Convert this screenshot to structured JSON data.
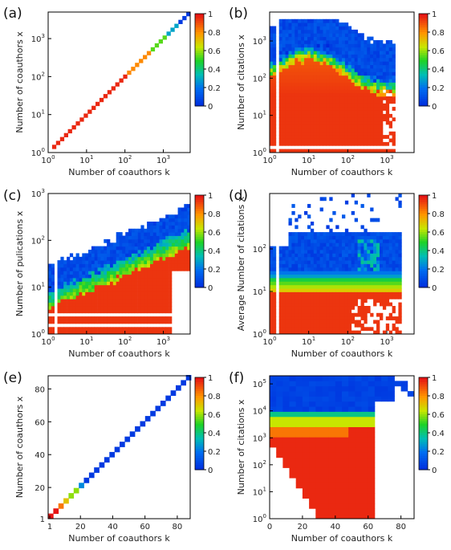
{
  "chart_data": [
    {
      "panel_label": "(a)",
      "type": "heatmap",
      "xlabel": "Number of coauthors k",
      "ylabel": "Number of coauthors x",
      "xscale": "log",
      "yscale": "log",
      "xlim": [
        1,
        5000
      ],
      "ylim": [
        1,
        5000
      ],
      "x_ticks": [
        {
          "v": 1,
          "b": "10",
          "e": "0"
        },
        {
          "v": 10,
          "b": "10",
          "e": "1"
        },
        {
          "v": 100,
          "b": "10",
          "e": "2"
        },
        {
          "v": 1000,
          "b": "10",
          "e": "3"
        }
      ],
      "y_ticks": [
        {
          "v": 1,
          "b": "10",
          "e": "0"
        },
        {
          "v": 10,
          "b": "10",
          "e": "1"
        },
        {
          "v": 100,
          "b": "10",
          "e": "2"
        },
        {
          "v": 1000,
          "b": "10",
          "e": "3"
        }
      ],
      "pattern": "diagonal",
      "colorbar": {
        "min": 0,
        "max": 1,
        "ticks": [
          "0",
          "0.2",
          "0.4",
          "0.6",
          "0.8",
          "1"
        ]
      }
    },
    {
      "panel_label": "(b)",
      "type": "heatmap",
      "xlabel": "Number of coauthors k",
      "ylabel": "Number of citations x",
      "xscale": "log",
      "yscale": "log",
      "xlim": [
        1,
        5000
      ],
      "ylim": [
        1,
        6000
      ],
      "x_ticks": [
        {
          "v": 1,
          "b": "10",
          "e": "0"
        },
        {
          "v": 10,
          "b": "10",
          "e": "1"
        },
        {
          "v": 100,
          "b": "10",
          "e": "2"
        },
        {
          "v": 1000,
          "b": "10",
          "e": "3"
        }
      ],
      "y_ticks": [
        {
          "v": 1,
          "b": "10",
          "e": "0"
        },
        {
          "v": 10,
          "b": "10",
          "e": "1"
        },
        {
          "v": 100,
          "b": "10",
          "e": "2"
        },
        {
          "v": 1000,
          "b": "10",
          "e": "3"
        }
      ],
      "pattern": "citations",
      "colorbar": {
        "min": 0,
        "max": 1,
        "ticks": [
          "0",
          "0.2",
          "0.4",
          "0.6",
          "0.8",
          "1"
        ]
      }
    },
    {
      "panel_label": "(c)",
      "type": "heatmap",
      "xlabel": "Number of coauthors k",
      "ylabel": "Number of pulications x",
      "xscale": "log",
      "yscale": "log",
      "xlim": [
        1,
        5000
      ],
      "ylim": [
        1,
        1000
      ],
      "x_ticks": [
        {
          "v": 1,
          "b": "10",
          "e": "0"
        },
        {
          "v": 10,
          "b": "10",
          "e": "1"
        },
        {
          "v": 100,
          "b": "10",
          "e": "2"
        },
        {
          "v": 1000,
          "b": "10",
          "e": "3"
        }
      ],
      "y_ticks": [
        {
          "v": 1,
          "b": "10",
          "e": "0"
        },
        {
          "v": 10,
          "b": "10",
          "e": "1"
        },
        {
          "v": 100,
          "b": "10",
          "e": "2"
        },
        {
          "v": 1000,
          "b": "10",
          "e": "3"
        }
      ],
      "pattern": "publications",
      "colorbar": {
        "min": 0,
        "max": 1,
        "ticks": [
          "0",
          "0.2",
          "0.4",
          "0.6",
          "0.8",
          "1"
        ]
      }
    },
    {
      "panel_label": "(d)",
      "type": "heatmap",
      "xlabel": "Number of coauthors k",
      "ylabel": "Average Number of citations x",
      "xscale": "log",
      "yscale": "log",
      "xlim": [
        1,
        5000
      ],
      "ylim": [
        1,
        2000
      ],
      "x_ticks": [
        {
          "v": 1,
          "b": "10",
          "e": "0"
        },
        {
          "v": 10,
          "b": "10",
          "e": "1"
        },
        {
          "v": 100,
          "b": "10",
          "e": "2"
        },
        {
          "v": 1000,
          "b": "10",
          "e": "3"
        }
      ],
      "y_ticks": [
        {
          "v": 1,
          "b": "10",
          "e": "0"
        },
        {
          "v": 10,
          "b": "10",
          "e": "1"
        },
        {
          "v": 100,
          "b": "10",
          "e": "2"
        }
      ],
      "pattern": "avgcitations",
      "colorbar": {
        "min": 0,
        "max": 1,
        "ticks": [
          "0",
          "0.2",
          "0.4",
          "0.6",
          "0.8",
          "1"
        ]
      }
    },
    {
      "panel_label": "(e)",
      "type": "heatmap",
      "xlabel": "Number of coauthors k",
      "ylabel": "Number of coauthors x",
      "xscale": "linear",
      "yscale": "linear",
      "xlim": [
        0,
        88
      ],
      "ylim": [
        1,
        88
      ],
      "x_ticks": [
        {
          "v": 1,
          "t": "1"
        },
        {
          "v": 20,
          "t": "20"
        },
        {
          "v": 40,
          "t": "40"
        },
        {
          "v": 60,
          "t": "60"
        },
        {
          "v": 80,
          "t": "80"
        }
      ],
      "y_ticks": [
        {
          "v": 1,
          "t": "1"
        },
        {
          "v": 20,
          "t": "20"
        },
        {
          "v": 40,
          "t": "40"
        },
        {
          "v": 60,
          "t": "60"
        },
        {
          "v": 80,
          "t": "80"
        }
      ],
      "pattern": "lineardiag",
      "colorbar": {
        "min": 0,
        "max": 1,
        "ticks": [
          "0",
          "0.2",
          "0.4",
          "0.6",
          "0.8",
          "1"
        ]
      }
    },
    {
      "panel_label": "(f)",
      "type": "heatmap",
      "xlabel": "Number of coauthors k",
      "ylabel": "Number of citations x",
      "xscale": "linear",
      "yscale": "log",
      "xlim": [
        0,
        88
      ],
      "ylim": [
        1,
        200000
      ],
      "x_ticks": [
        {
          "v": 0,
          "t": "0"
        },
        {
          "v": 20,
          "t": "20"
        },
        {
          "v": 40,
          "t": "40"
        },
        {
          "v": 60,
          "t": "60"
        },
        {
          "v": 80,
          "t": "80"
        }
      ],
      "y_ticks": [
        {
          "v": 1,
          "b": "10",
          "e": "0"
        },
        {
          "v": 10,
          "b": "10",
          "e": "1"
        },
        {
          "v": 100,
          "b": "10",
          "e": "2"
        },
        {
          "v": 1000,
          "b": "10",
          "e": "3"
        },
        {
          "v": 10000,
          "b": "10",
          "e": "4"
        },
        {
          "v": 100000,
          "b": "10",
          "e": "5"
        }
      ],
      "pattern": "linearcitations",
      "colorbar": {
        "min": 0,
        "max": 1,
        "ticks": [
          "0",
          "0.2",
          "0.4",
          "0.6",
          "0.8",
          "1"
        ]
      }
    }
  ]
}
